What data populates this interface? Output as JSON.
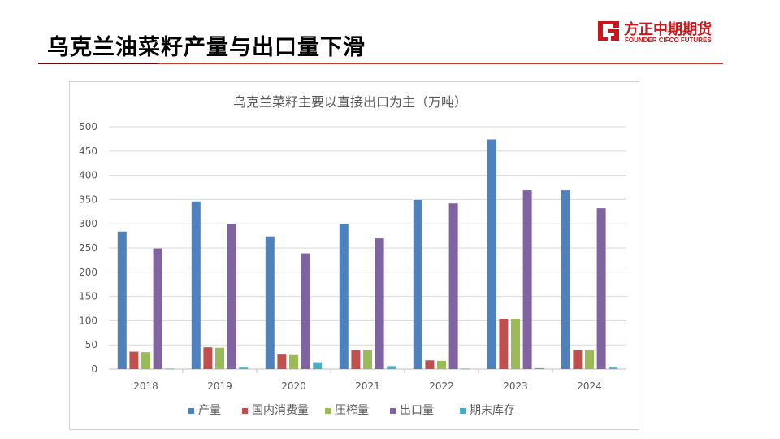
{
  "slide": {
    "title": "乌克兰油菜籽产量与出口量下滑"
  },
  "logo": {
    "name_cn": "方正中期期货",
    "name_en": "FOUNDER CIFCO FUTURES",
    "color": "#c8161d"
  },
  "chart_data": {
    "type": "bar",
    "title": "乌克兰菜籽主要以直接出口为主（万吨）",
    "categories": [
      "2018",
      "2019",
      "2020",
      "2021",
      "2022",
      "2023",
      "2024"
    ],
    "series": [
      {
        "name": "产量",
        "color": "#4f81bd",
        "values": [
          284,
          346,
          274,
          300,
          349,
          474,
          369
        ]
      },
      {
        "name": "国内消费量",
        "color": "#c0504d",
        "values": [
          36,
          45,
          30,
          39,
          18,
          104,
          39
        ]
      },
      {
        "name": "压榨量",
        "color": "#9bbb59",
        "values": [
          35,
          44,
          29,
          39,
          17,
          104,
          39
        ]
      },
      {
        "name": "出口量",
        "color": "#8064a2",
        "values": [
          249,
          299,
          239,
          270,
          342,
          369,
          332
        ]
      },
      {
        "name": "期末库存",
        "color": "#4bacc6",
        "values": [
          1,
          3,
          14,
          6,
          1,
          2,
          3
        ]
      }
    ],
    "ylim": [
      0,
      500
    ],
    "yticks": [
      0,
      50,
      100,
      150,
      200,
      250,
      300,
      350,
      400,
      450,
      500
    ],
    "grid": true,
    "legend_position": "bottom"
  }
}
